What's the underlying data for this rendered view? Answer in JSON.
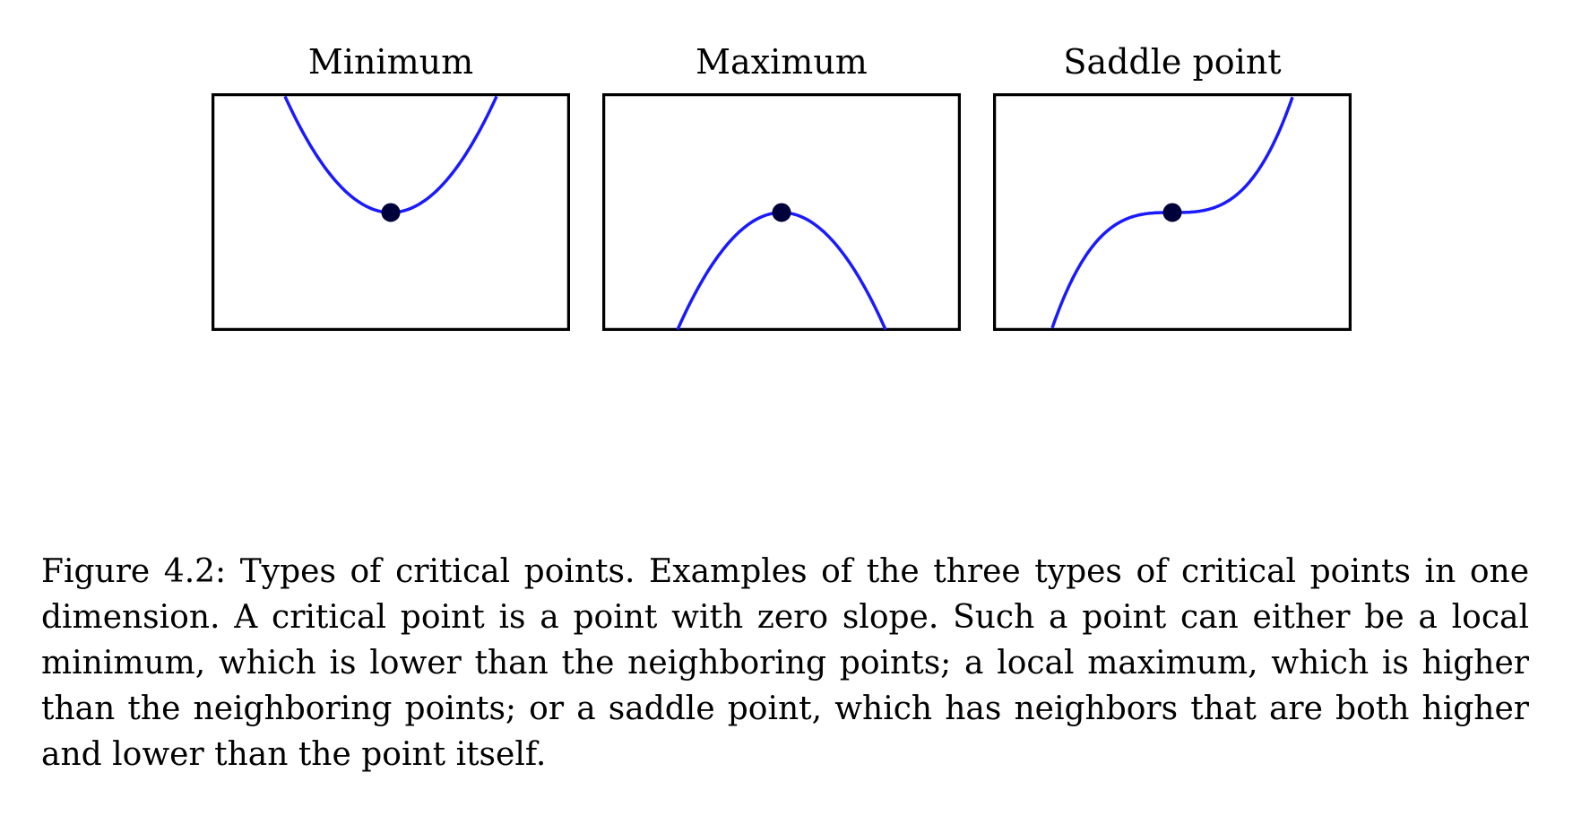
{
  "figure": {
    "panels": [
      {
        "title": "Minimum",
        "kind": "minimum"
      },
      {
        "title": "Maximum",
        "kind": "maximum"
      },
      {
        "title": "Saddle point",
        "kind": "saddle"
      }
    ],
    "curve_color": "#1a1aff",
    "point_color": "#00003a",
    "caption": "Figure 4.2: Types of critical points. Examples of the three types of critical points in one dimension. A critical point is a point with zero slope. Such a point can either be a local minimum, which is lower than the neighboring points; a local maximum, which is higher than the neighboring points; or a saddle point, which has neighbors that are both higher and lower than the point itself."
  }
}
